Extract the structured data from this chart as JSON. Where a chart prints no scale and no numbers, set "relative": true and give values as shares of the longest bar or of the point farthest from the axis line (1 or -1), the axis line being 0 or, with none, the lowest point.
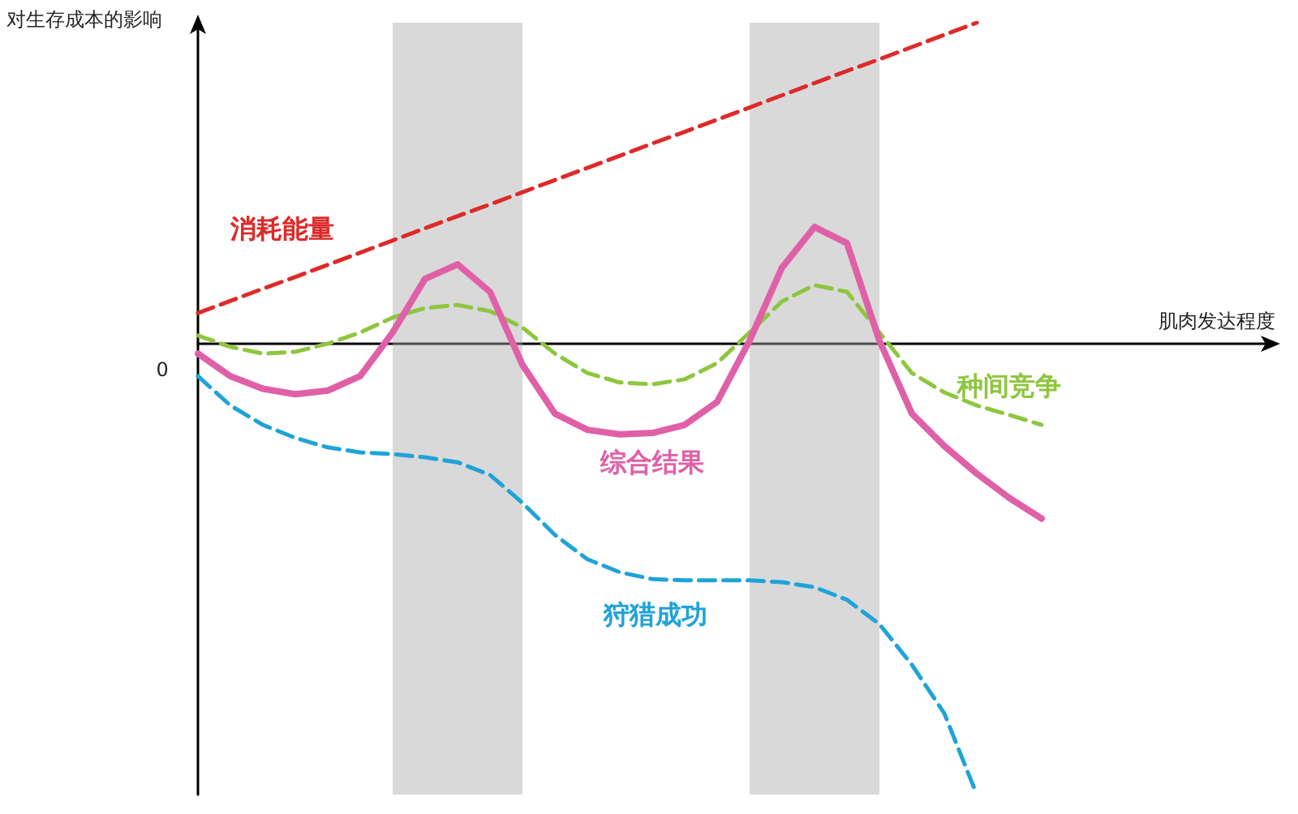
{
  "chart_data": {
    "type": "line",
    "relative": true,
    "xlabel": "肌肉发达程度",
    "ylabel": "对生存成本的影响",
    "annotations": [
      "0"
    ],
    "legend": false,
    "grid": false,
    "marker": "none",
    "categories": [
      null,
      null,
      null,
      null,
      null,
      null,
      null,
      null,
      null,
      null,
      null,
      null,
      null,
      null,
      null,
      null,
      null,
      null,
      null,
      null,
      null,
      null,
      null,
      null,
      null,
      null,
      null,
      null,
      null,
      null,
      null,
      null,
      null,
      null
    ],
    "series": [
      {
        "name": "消耗能量",
        "color": "#dd2a2a",
        "line_style": "dashed",
        "values": [
          0.068,
          0.095,
          0.122,
          0.148,
          0.175,
          0.202,
          0.229,
          0.256,
          0.283,
          0.309,
          0.336,
          0.363,
          0.39,
          0.417,
          0.444,
          0.47,
          0.497,
          0.524,
          0.551,
          0.578,
          0.605,
          0.631,
          0.658,
          0.685,
          0.712,
          null,
          null,
          null,
          null,
          null,
          null,
          null,
          null,
          null
        ]
      },
      {
        "name": "种间竞争",
        "color": "#8dc63f",
        "line_style": "dashed",
        "values": [
          0.018,
          -0.007,
          -0.022,
          -0.018,
          0,
          0.025,
          0.058,
          0.079,
          0.086,
          0.072,
          0.036,
          -0.022,
          -0.065,
          -0.086,
          -0.09,
          -0.079,
          -0.043,
          0.025,
          0.094,
          0.13,
          0.115,
          0.025,
          -0.065,
          -0.108,
          -0.137,
          -0.158,
          -0.18,
          null,
          null,
          null,
          null,
          null,
          null,
          null
        ]
      },
      {
        "name": "综合结果",
        "color": "#e060a8",
        "line_style": "solid",
        "values": [
          -0.022,
          -0.072,
          -0.1,
          -0.112,
          -0.104,
          -0.072,
          0.025,
          0.144,
          0.176,
          0.115,
          -0.047,
          -0.155,
          -0.191,
          -0.201,
          -0.198,
          -0.18,
          -0.129,
          0.007,
          0.169,
          0.259,
          0.223,
          0.007,
          -0.155,
          -0.227,
          -0.288,
          -0.342,
          -0.388,
          null,
          null,
          null,
          null,
          null,
          null,
          null
        ]
      },
      {
        "name": "狩猎成功",
        "color": "#1fa3d8",
        "line_style": "dashed",
        "values": [
          -0.072,
          -0.137,
          -0.18,
          -0.209,
          -0.23,
          -0.241,
          -0.245,
          -0.252,
          -0.263,
          -0.291,
          -0.353,
          -0.424,
          -0.478,
          -0.507,
          -0.522,
          -0.525,
          -0.525,
          -0.525,
          -0.529,
          -0.54,
          -0.568,
          -0.622,
          -0.712,
          -0.82,
          -1,
          null,
          null,
          null,
          null,
          null,
          null,
          null,
          null,
          null
        ]
      }
    ]
  }
}
